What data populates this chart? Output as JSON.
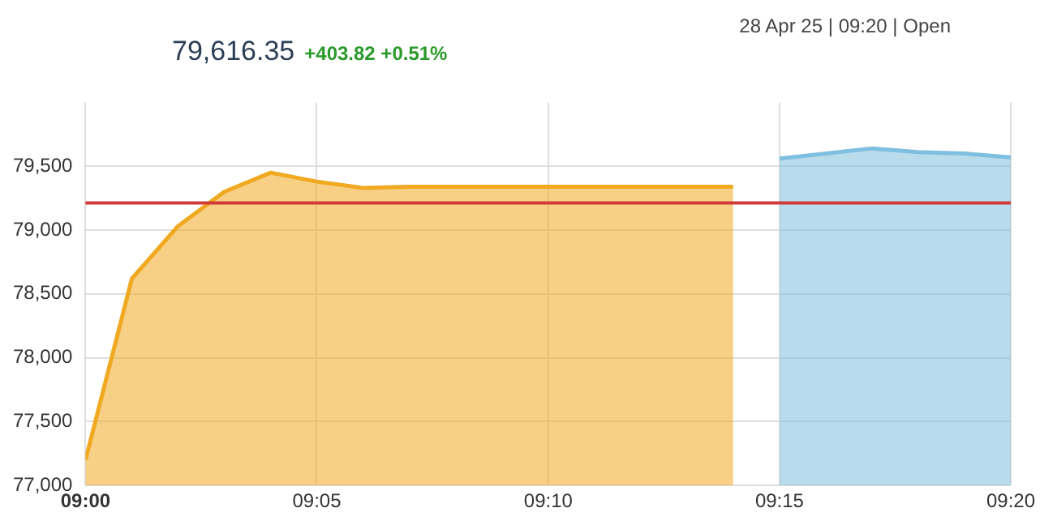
{
  "chart_data": {
    "type": "area",
    "title": "79,616.35",
    "subtitle": "+403.82 +0.51%",
    "annotations": [
      "28 Apr 25 | 09:20 | Open"
    ],
    "series": [
      {
        "color": "#f0a920",
        "x": [
          9,
          9.0167,
          9.0333,
          9.05,
          9.0667,
          9.0833,
          9.1,
          9.1167,
          9.1333,
          9.15,
          9.1667,
          9.1833,
          9.2,
          9.2167,
          9.2333
        ],
        "values": [
          77200,
          78620,
          79030,
          79300,
          79450,
          79380,
          79330,
          79340,
          79340,
          79340,
          79340,
          79340,
          79340,
          79340,
          79340
        ]
      },
      {
        "color": "#7fbfdf",
        "x": [
          9.25,
          9.2667,
          9.2833,
          9.3,
          9.3167,
          9.3333
        ],
        "values": [
          79560,
          79600,
          79640,
          79610,
          79600,
          79570
        ]
      }
    ],
    "xlim": [
      9,
      9.3333
    ],
    "xticks": [
      {
        "value": 9,
        "label": "09:00"
      },
      {
        "value": 9.0833,
        "label": "09:05"
      },
      {
        "value": 9.1667,
        "label": "09:10"
      },
      {
        "value": 9.25,
        "label": "09:15"
      },
      {
        "value": 9.3333,
        "label": "09:20"
      }
    ],
    "ylim": [
      77000,
      80000
    ],
    "yticks": [
      {
        "value": 77000,
        "label": "77,000"
      },
      {
        "value": 77500,
        "label": "77,500"
      },
      {
        "value": 78000,
        "label": "78,000"
      },
      {
        "value": 78500,
        "label": "78,500"
      },
      {
        "value": 79000,
        "label": "79,000"
      },
      {
        "value": 79500,
        "label": "79,500"
      }
    ],
    "ref_lines": [
      {
        "axis": "y",
        "value": 79212.53,
        "color": "#d03a3a"
      }
    ],
    "grid": true,
    "legend": false,
    "marker": "none"
  }
}
